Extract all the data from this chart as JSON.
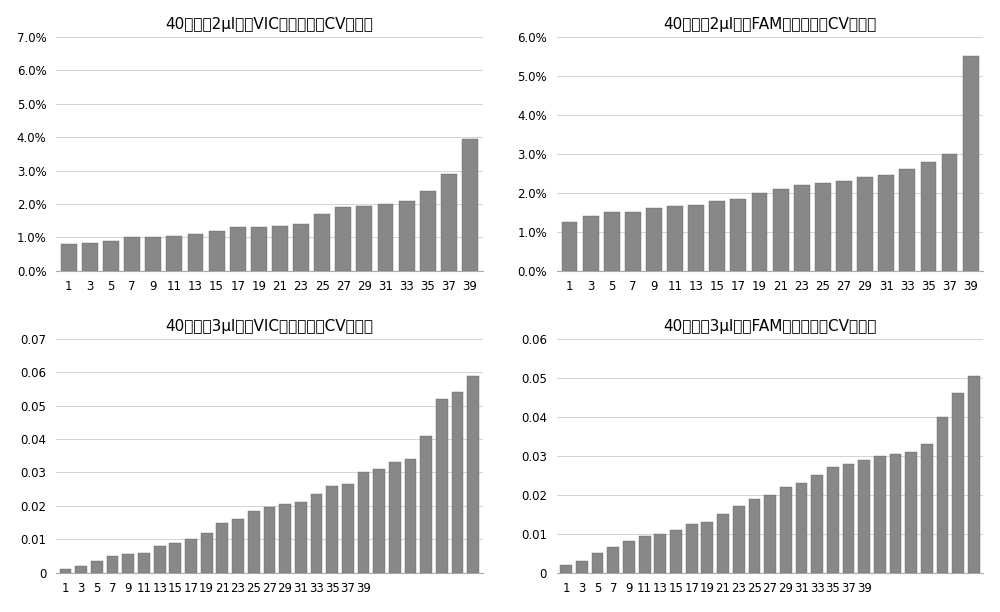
{
  "title_tl": "40个样本2μl体系VIC检测批次间CV値分布",
  "title_tr": "40个样本2μl体系FAM检测批次间CV値分布",
  "title_bl": "40个样本3μl体系VIC检测批次间CV値分布",
  "title_br": "40个样本3μl体系FAM检测批次间CV値分布",
  "bar_color": "#888888",
  "edge_color": "#666666",
  "background_color": "#ffffff",
  "tl_values": [
    0.008,
    0.0082,
    0.009,
    0.01,
    0.01,
    0.0105,
    0.011,
    0.012,
    0.013,
    0.013,
    0.0135,
    0.014,
    0.017,
    0.019,
    0.0195,
    0.02,
    0.021,
    0.024,
    0.029,
    0.0395
  ],
  "tr_values": [
    0.0125,
    0.014,
    0.015,
    0.015,
    0.016,
    0.0165,
    0.017,
    0.018,
    0.0185,
    0.02,
    0.021,
    0.022,
    0.0225,
    0.023,
    0.024,
    0.0245,
    0.026,
    0.028,
    0.03,
    0.055
  ],
  "bl_values": [
    0.001,
    0.002,
    0.0035,
    0.005,
    0.0055,
    0.006,
    0.008,
    0.009,
    0.01,
    0.012,
    0.015,
    0.016,
    0.0185,
    0.0195,
    0.0205,
    0.021,
    0.0235,
    0.026,
    0.0265,
    0.03,
    0.031,
    0.033,
    0.034,
    0.041,
    0.052,
    0.054,
    0.059
  ],
  "br_values": [
    0.002,
    0.003,
    0.005,
    0.0065,
    0.008,
    0.0095,
    0.01,
    0.011,
    0.0125,
    0.013,
    0.015,
    0.017,
    0.019,
    0.02,
    0.022,
    0.023,
    0.025,
    0.027,
    0.028,
    0.029,
    0.03,
    0.0305,
    0.031,
    0.033,
    0.04,
    0.046,
    0.0505
  ],
  "x_labels_20": [
    "1",
    "3",
    "5",
    "7",
    "9",
    "11",
    "13",
    "15",
    "17",
    "19",
    "21",
    "23",
    "25",
    "27",
    "29",
    "31",
    "33",
    "35",
    "37",
    "39"
  ],
  "x_labels_27": [
    "1",
    "3",
    "5",
    "7",
    "9",
    "11",
    "13",
    "15",
    "17",
    "19",
    "21",
    "23",
    "25",
    "27",
    "29",
    "31",
    "33",
    "35",
    "37",
    "39",
    "",
    "",
    "",
    "",
    "",
    "",
    ""
  ],
  "tl_ylim": [
    0,
    0.07
  ],
  "tr_ylim": [
    0,
    0.06
  ],
  "bl_ylim": [
    0,
    0.07
  ],
  "br_ylim": [
    0,
    0.06
  ],
  "tl_yticks": [
    0.0,
    0.01,
    0.02,
    0.03,
    0.04,
    0.05,
    0.06,
    0.07
  ],
  "tr_yticks": [
    0.0,
    0.01,
    0.02,
    0.03,
    0.04,
    0.05,
    0.06
  ],
  "bl_yticks": [
    0,
    0.01,
    0.02,
    0.03,
    0.04,
    0.05,
    0.06,
    0.07
  ],
  "br_yticks": [
    0,
    0.01,
    0.02,
    0.03,
    0.04,
    0.05,
    0.06
  ],
  "title_fontsize": 11,
  "tick_fontsize": 8.5,
  "tl_percent": true,
  "tr_percent": true,
  "bl_percent": false,
  "br_percent": false
}
